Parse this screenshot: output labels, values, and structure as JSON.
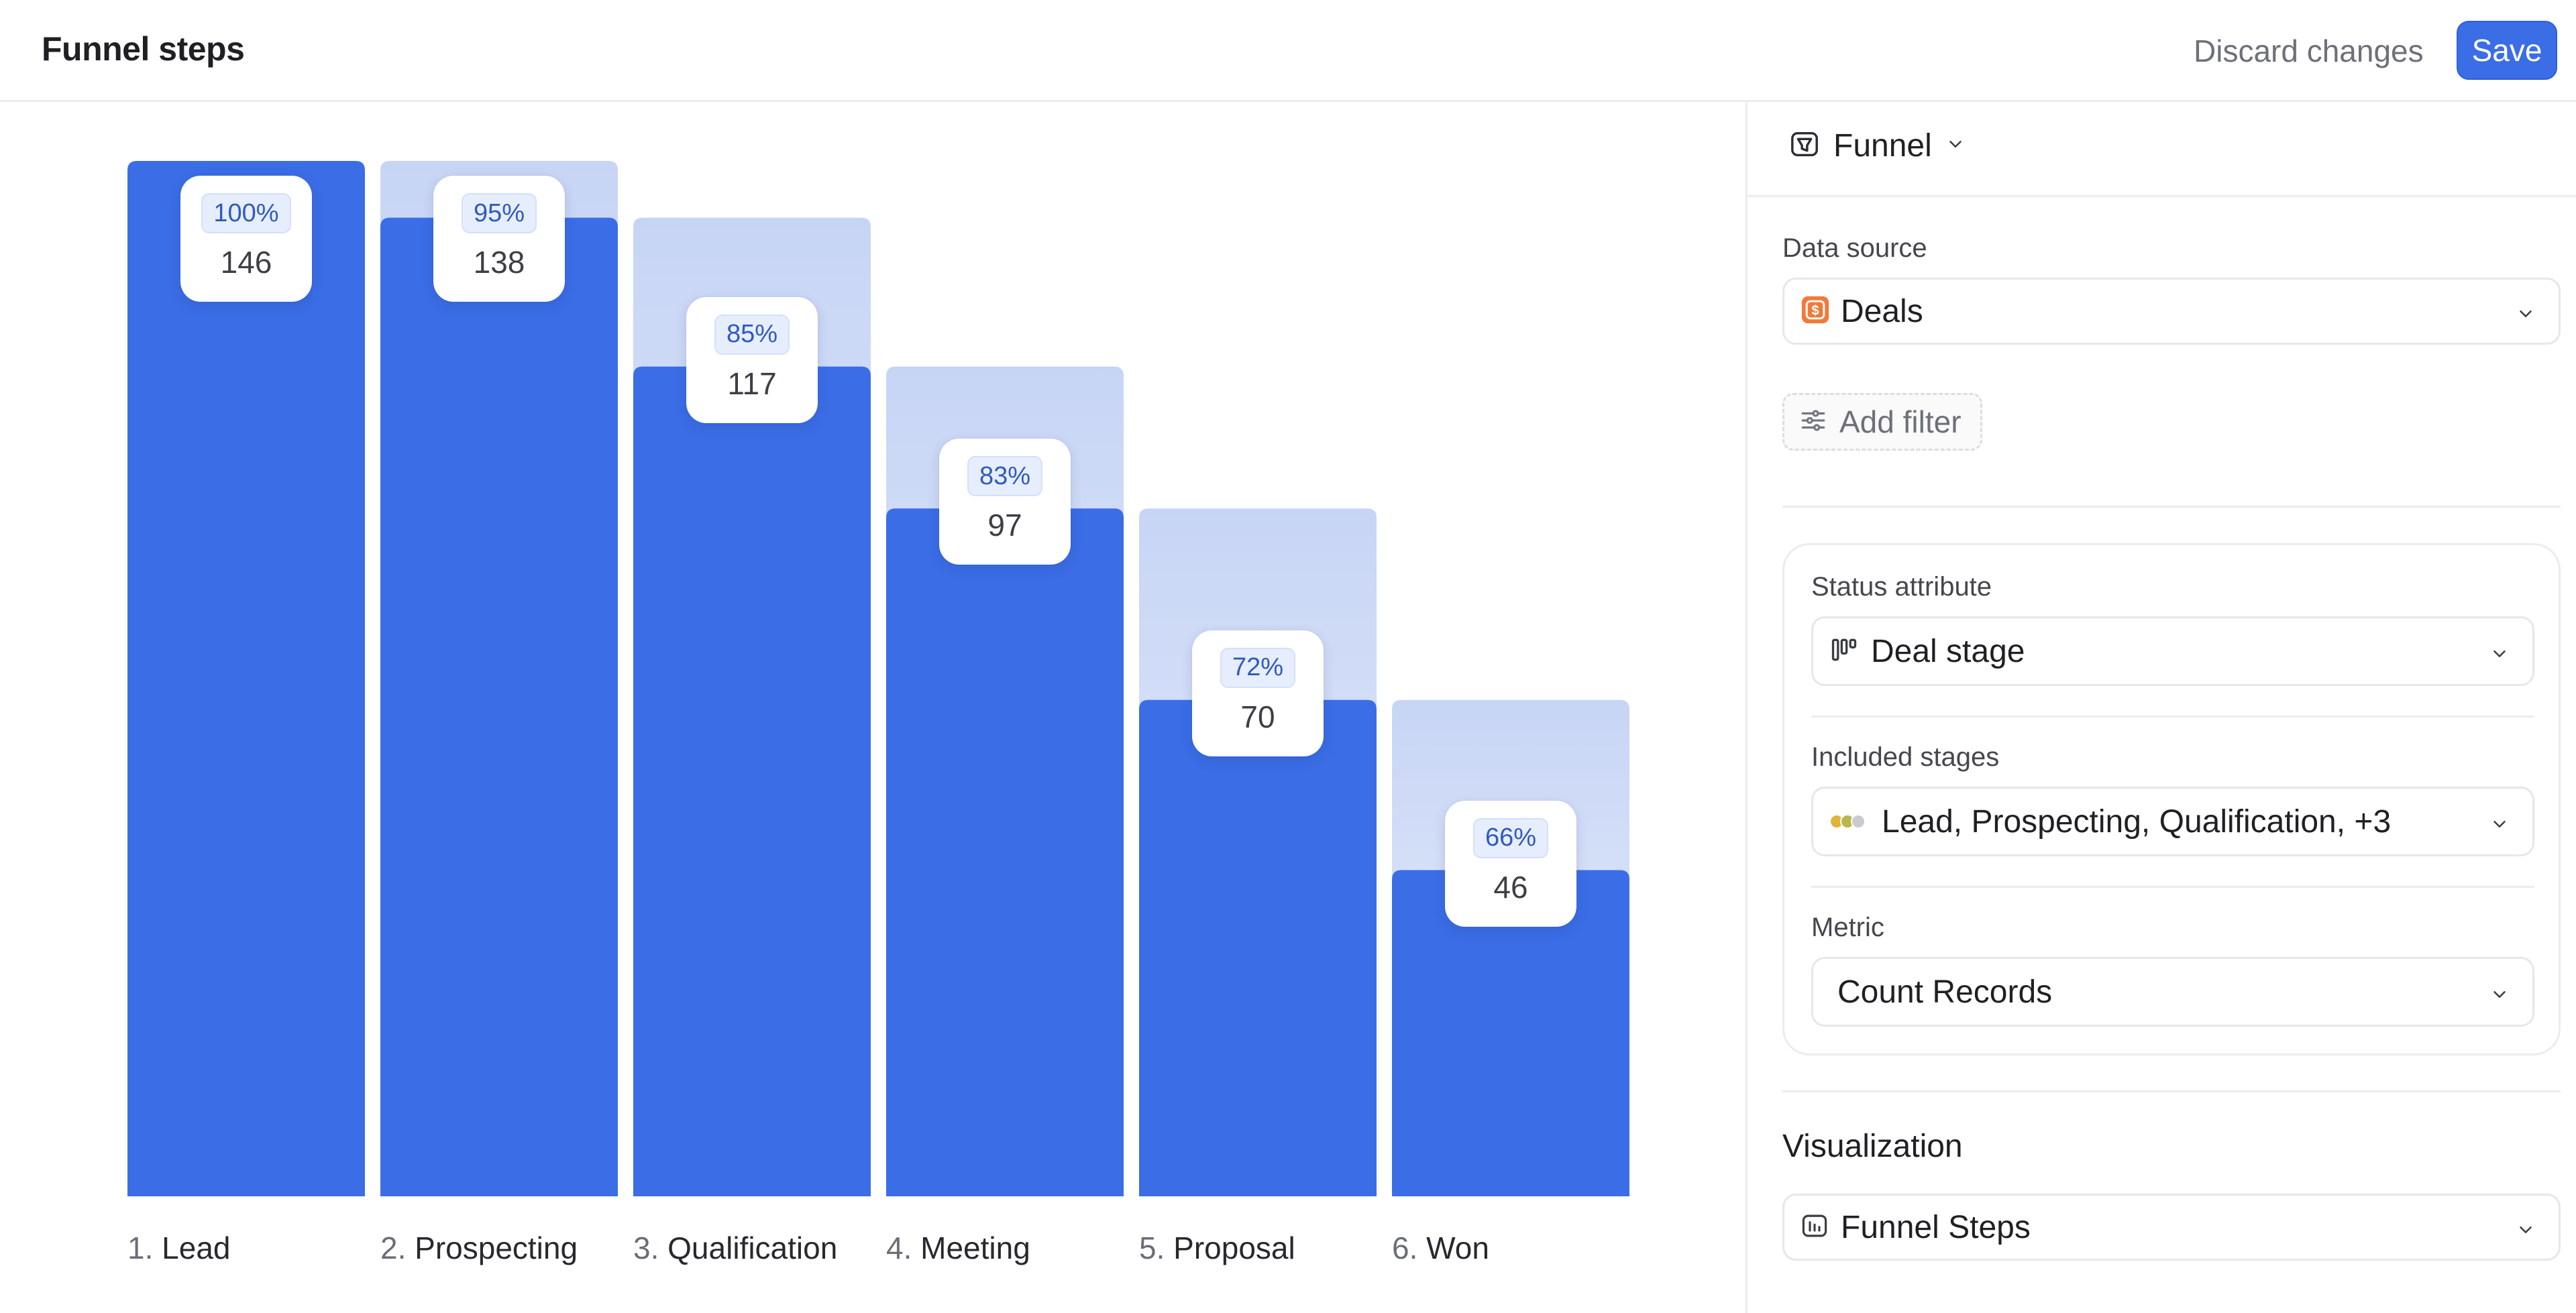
{
  "header": {
    "title": "Funnel steps",
    "discard_label": "Discard changes",
    "save_label": "Save"
  },
  "chart_data": {
    "type": "bar",
    "categories": [
      "1. Lead",
      "2. Prospecting",
      "3. Qualification",
      "4. Meeting",
      "5. Proposal",
      "6. Won"
    ],
    "values": [
      146,
      138,
      117,
      97,
      70,
      46
    ],
    "percentages": [
      "100%",
      "95%",
      "85%",
      "83%",
      "72%",
      "66%"
    ],
    "bar_color": "#3b6de6",
    "dropoff_color": "#c7d5f5",
    "ylim": [
      0,
      146
    ]
  },
  "sidebar": {
    "viz_type": {
      "label": "Funnel",
      "icon": "funnel-chart-icon"
    },
    "data_source": {
      "label": "Data source",
      "value": "Deals",
      "icon": "deals-icon",
      "icon_color": "#f07a3a"
    },
    "add_filter": {
      "label": "Add filter",
      "icon": "filter-sliders-icon"
    },
    "status_attribute": {
      "label": "Status attribute",
      "value": "Deal stage",
      "icon": "kanban-icon"
    },
    "included_stages": {
      "label": "Included stages",
      "value": "Lead, Prospecting, Qualification, +3",
      "dot_colors": [
        "#e0b43a",
        "#b8b84a",
        "#c9cbcf"
      ]
    },
    "metric": {
      "label": "Metric",
      "value": "Count Records"
    },
    "visualization": {
      "heading": "Visualization",
      "value": "Funnel Steps",
      "icon": "funnel-steps-icon"
    }
  }
}
